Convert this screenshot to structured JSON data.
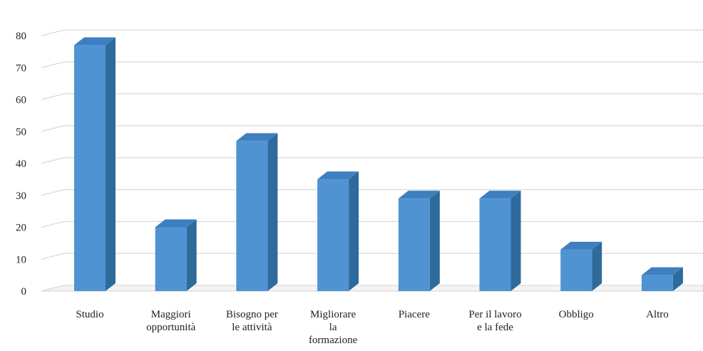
{
  "chart_data": {
    "type": "bar",
    "style": "3d-column",
    "categories": [
      [
        "Studio"
      ],
      [
        "Maggiori",
        "opportunità"
      ],
      [
        "Bisogno per",
        "le attività"
      ],
      [
        "Migliorare",
        "la",
        "formazione"
      ],
      [
        "Piacere"
      ],
      [
        "Per il lavoro",
        "e la fede"
      ],
      [
        "Obbligo"
      ],
      [
        "Altro"
      ]
    ],
    "values": [
      77,
      20,
      47,
      35,
      29,
      29,
      13,
      5
    ],
    "yticks": [
      0,
      10,
      20,
      30,
      40,
      50,
      60,
      70,
      80
    ],
    "ylim": [
      0,
      80
    ],
    "title": "",
    "xlabel": "",
    "ylabel": "",
    "grid": true,
    "legend": "none",
    "colors": {
      "bar_front": "#4f93d3",
      "bar_side": "#2e6a9c",
      "bar_top": "#3f7fbf",
      "grid": "#d9d9d9",
      "floor": "#d0d0d0"
    }
  }
}
